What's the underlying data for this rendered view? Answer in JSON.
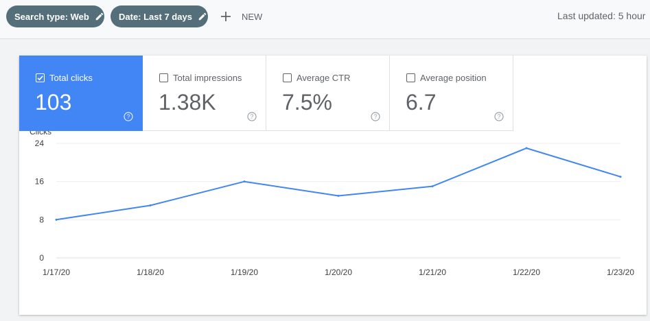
{
  "filters": {
    "chips": [
      {
        "label": "Search type: Web",
        "icon": "pencil-icon"
      },
      {
        "label": "Date: Last 7 days",
        "icon": "pencil-icon"
      }
    ],
    "new_label": "NEW",
    "last_updated": "Last updated: 5 hour"
  },
  "metrics": [
    {
      "label": "Total clicks",
      "value": "103",
      "checked": true
    },
    {
      "label": "Total impressions",
      "value": "1.38K",
      "checked": false
    },
    {
      "label": "Average CTR",
      "value": "7.5%",
      "checked": false
    },
    {
      "label": "Average position",
      "value": "6.7",
      "checked": false
    }
  ],
  "colors": {
    "chip_bg": "#546e7a",
    "active_metric": "#4285f4",
    "line": "#4285f4",
    "grid": "#e8eaed",
    "text_muted": "#5f6368"
  },
  "chart_data": {
    "type": "line",
    "title": "",
    "ylabel": "Clicks",
    "xlabel": "",
    "categories": [
      "1/17/20",
      "1/18/20",
      "1/19/20",
      "1/20/20",
      "1/21/20",
      "1/22/20",
      "1/23/20"
    ],
    "series": [
      {
        "name": "Total clicks",
        "values": [
          8,
          11,
          16,
          13,
          15,
          23,
          17
        ]
      }
    ],
    "yticks": [
      0,
      8,
      16,
      24
    ],
    "ylim": [
      0,
      24
    ],
    "grid": true,
    "legend": "none"
  }
}
